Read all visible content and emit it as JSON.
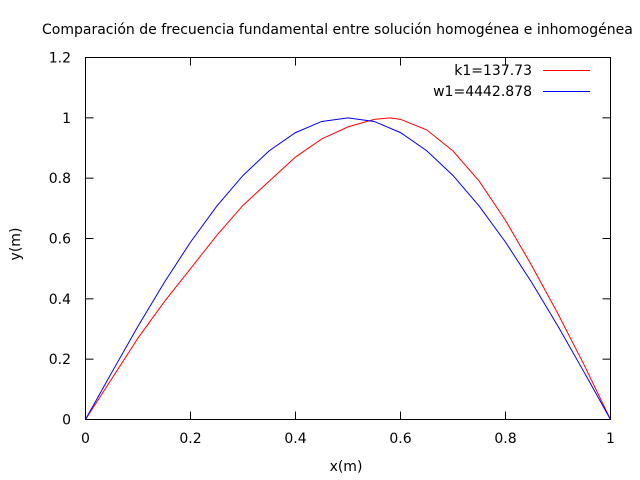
{
  "chart_data": {
    "type": "line",
    "title": "Comparación de frecuencia fundamental entre solución homogénea e inhomogénea",
    "xlabel": "x(m)",
    "ylabel": "y(m)",
    "xlim": [
      0,
      1
    ],
    "ylim": [
      0,
      1.2
    ],
    "xticks": [
      0,
      0.2,
      0.4,
      0.6,
      0.8,
      1
    ],
    "xtick_labels": [
      "0",
      "0.2",
      "0.4",
      "0.6",
      "0.8",
      "1"
    ],
    "yticks": [
      0,
      0.2,
      0.4,
      0.6,
      0.8,
      1,
      1.2
    ],
    "ytick_labels": [
      "0",
      "0.2",
      "0.4",
      "0.6",
      "0.8",
      "1",
      "1.2"
    ],
    "grid": false,
    "legend_position": "top-right",
    "series": [
      {
        "name": "k1=137.73",
        "color": "#ff0000",
        "x": [
          0,
          0.05,
          0.1,
          0.15,
          0.2,
          0.25,
          0.3,
          0.35,
          0.4,
          0.45,
          0.5,
          0.55,
          0.58,
          0.6,
          0.65,
          0.7,
          0.75,
          0.8,
          0.85,
          0.9,
          0.95,
          1
        ],
        "y": [
          0,
          0.135,
          0.27,
          0.39,
          0.5,
          0.61,
          0.71,
          0.79,
          0.87,
          0.93,
          0.97,
          0.995,
          1.0,
          0.995,
          0.96,
          0.89,
          0.79,
          0.66,
          0.51,
          0.35,
          0.18,
          0
        ]
      },
      {
        "name": "w1=4442.878",
        "color": "#0000ff",
        "x": [
          0,
          0.05,
          0.1,
          0.15,
          0.2,
          0.25,
          0.3,
          0.35,
          0.4,
          0.45,
          0.5,
          0.55,
          0.6,
          0.65,
          0.7,
          0.75,
          0.8,
          0.85,
          0.9,
          0.95,
          1
        ],
        "y": [
          0,
          0.156,
          0.309,
          0.454,
          0.588,
          0.707,
          0.809,
          0.891,
          0.951,
          0.988,
          1.0,
          0.988,
          0.951,
          0.891,
          0.809,
          0.707,
          0.588,
          0.454,
          0.309,
          0.156,
          0
        ]
      }
    ]
  }
}
